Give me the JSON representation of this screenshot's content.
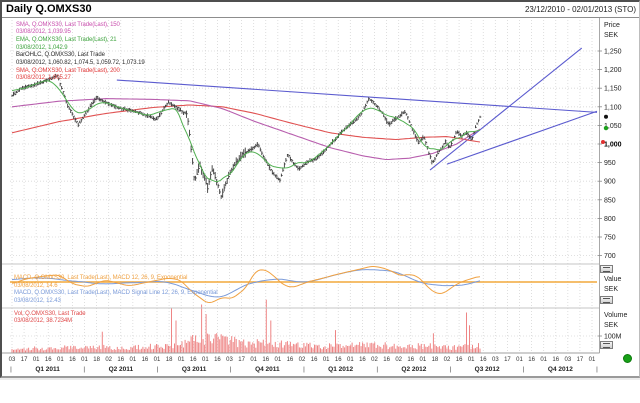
{
  "window": {
    "title": "Daily Q.OMXS30",
    "range": "23/12/2010 - 02/01/2013 (STO)"
  },
  "axes": {
    "price": {
      "title": "Price",
      "currency": "SEK",
      "tick_values": [
        1250,
        1200,
        1150,
        1100,
        1050,
        1000,
        950,
        900,
        850,
        800,
        750,
        700
      ],
      "tick_labels": [
        "1,250",
        "1,200",
        "1,150",
        "1,100",
        "1,050",
        "1,000",
        "950",
        "900",
        "850",
        "800",
        "750",
        "700"
      ],
      "bold_tick": 1000
    },
    "macd": {
      "title": "Value",
      "currency": "SEK"
    },
    "volume": {
      "title": "Volume",
      "currency": "SEK",
      "tick": "100M"
    }
  },
  "xaxis": {
    "days": [
      "03",
      "17",
      "01",
      "16",
      "01",
      "16",
      "01",
      "18",
      "02",
      "16",
      "01",
      "16",
      "01",
      "18",
      "01",
      "16",
      "01",
      "16",
      "03",
      "17",
      "01",
      "16",
      "01",
      "16",
      "02",
      "16",
      "01",
      "16",
      "01",
      "16",
      "02",
      "16",
      "02",
      "16",
      "01",
      "18",
      "02",
      "16",
      "01",
      "16",
      "03",
      "17",
      "01",
      "16",
      "01",
      "16",
      "03",
      "17",
      "01"
    ],
    "quarters": [
      "Q1 2011",
      "Q2 2011",
      "Q3 2011",
      "Q4 2011",
      "Q1 2012",
      "Q2 2012",
      "Q3 2012",
      "Q4 2012"
    ],
    "separator": "|"
  },
  "legends": {
    "main": [
      {
        "color": "#c94fae",
        "lines": [
          "SMA, Q.OMXS30, Last Trade(Last), 150",
          "03/08/2012, 1,039.95"
        ]
      },
      {
        "color": "#3da33d",
        "lines": [
          "EMA, Q.OMXS30, Last Trade(Last), 21",
          "03/08/2012, 1,042.9"
        ]
      },
      {
        "color": "#2b2b2b",
        "lines": [
          "BarOHLC, Q.OMXS30, Last Trade",
          "03/08/2012, 1,060.82, 1,074.5, 1,059.72, 1,073.19"
        ]
      },
      {
        "color": "#e23b3b",
        "lines": [
          "SMA, Q.OMXS30, Last Trade(Last), 200",
          "03/08/2012, 1,005.27"
        ]
      }
    ],
    "macd": [
      {
        "color": "#f0a243",
        "lines": [
          "MACD, Q.OMXS30, Last Trade(Last), MACD 12, 26, 9, Exponential",
          "03/08/2012, 14.6"
        ]
      },
      {
        "color": "#7b9bd9",
        "lines": [
          "MACD, Q.OMXS30, Last Trade(Last), MACD Signal Line 12, 26, 9, Exponential",
          "03/08/2012, 12.43"
        ]
      }
    ],
    "volume": [
      {
        "color": "#e04a4a",
        "lines": [
          "Vol, Q.OMXS30, Last Trade",
          "03/08/2012, 38.7234M"
        ]
      }
    ]
  },
  "colors": {
    "grid": "#d6d6d6",
    "ohlc_bar": "#3a3a3a",
    "ema": "#52b052",
    "sma150": "#b85fae",
    "sma200": "#e05252",
    "trendline": "#5b5bcf",
    "macd_line": "#f0a243",
    "macd_zero": "#f2a93b",
    "macd_signal": "#7b9bd9",
    "volume_bar": "#ee8585",
    "axis_text": "#222222",
    "status_green": "#18a018",
    "marker_last": "#111111",
    "marker_ema": "#1ea01e",
    "marker_sma200": "#e03030"
  },
  "chart_data": {
    "type": "ohlc-bar with SMA/EMA overlays, MACD and Volume subpanels",
    "instrument": "Q.OMXS30",
    "interval": "Daily",
    "x_range": [
      "23/12/2010",
      "02/01/2013"
    ],
    "data_end_fraction": 0.795,
    "last_bar": {
      "date": "03/08/2012",
      "open": 1060.82,
      "high": 1074.5,
      "low": 1059.72,
      "close": 1073.19
    },
    "price_ylim": [
      700,
      1250
    ],
    "markers": {
      "last": 1073.19,
      "ema21": 1042.9,
      "sma200": 1005.27
    },
    "close_anchors": [
      [
        0,
        1130
      ],
      [
        0.02,
        1150
      ],
      [
        0.05,
        1160
      ],
      [
        0.097,
        1183
      ],
      [
        0.12,
        1100
      ],
      [
        0.141,
        1052
      ],
      [
        0.18,
        1125
      ],
      [
        0.22,
        1100
      ],
      [
        0.27,
        1085
      ],
      [
        0.309,
        1067
      ],
      [
        0.334,
        1113
      ],
      [
        0.36,
        1090
      ],
      [
        0.375,
        1078
      ],
      [
        0.385,
        960
      ],
      [
        0.39,
        897
      ],
      [
        0.401,
        945
      ],
      [
        0.41,
        915
      ],
      [
        0.418,
        882
      ],
      [
        0.428,
        933
      ],
      [
        0.44,
        890
      ],
      [
        0.447,
        857
      ],
      [
        0.46,
        905
      ],
      [
        0.472,
        938
      ],
      [
        0.49,
        970
      ],
      [
        0.51,
        985
      ],
      [
        0.525,
        1000
      ],
      [
        0.54,
        960
      ],
      [
        0.555,
        925
      ],
      [
        0.572,
        902
      ],
      [
        0.589,
        973
      ],
      [
        0.6,
        950
      ],
      [
        0.613,
        932
      ],
      [
        0.632,
        953
      ],
      [
        0.65,
        960
      ],
      [
        0.67,
        985
      ],
      [
        0.688,
        1010
      ],
      [
        0.71,
        1040
      ],
      [
        0.737,
        1068
      ],
      [
        0.75,
        1090
      ],
      [
        0.762,
        1122
      ],
      [
        0.775,
        1108
      ],
      [
        0.79,
        1085
      ],
      [
        0.805,
        1052
      ],
      [
        0.82,
        1068
      ],
      [
        0.834,
        1082
      ],
      [
        0.84,
        1088
      ],
      [
        0.855,
        1040
      ],
      [
        0.869,
        1002
      ],
      [
        0.88,
        1020
      ],
      [
        0.898,
        947
      ],
      [
        0.91,
        975
      ],
      [
        0.927,
        1008
      ],
      [
        0.934,
        988
      ],
      [
        0.951,
        1035
      ],
      [
        0.96,
        1020
      ],
      [
        0.97,
        1030
      ],
      [
        0.983,
        1012
      ],
      [
        0.99,
        1045
      ],
      [
        1,
        1073.19
      ]
    ],
    "sma150_anchors": [
      [
        0,
        1100
      ],
      [
        0.1,
        1115
      ],
      [
        0.2,
        1122
      ],
      [
        0.3,
        1120
      ],
      [
        0.38,
        1116
      ],
      [
        0.45,
        1095
      ],
      [
        0.52,
        1060
      ],
      [
        0.6,
        1025
      ],
      [
        0.68,
        990
      ],
      [
        0.75,
        968
      ],
      [
        0.8,
        958
      ],
      [
        0.85,
        962
      ],
      [
        0.9,
        975
      ],
      [
        0.95,
        1000
      ],
      [
        0.975,
        1020
      ],
      [
        1,
        1039.95
      ]
    ],
    "sma200_anchors": [
      [
        0,
        1030
      ],
      [
        0.1,
        1060
      ],
      [
        0.2,
        1082
      ],
      [
        0.3,
        1098
      ],
      [
        0.38,
        1105
      ],
      [
        0.45,
        1100
      ],
      [
        0.52,
        1082
      ],
      [
        0.6,
        1055
      ],
      [
        0.68,
        1030
      ],
      [
        0.75,
        1018
      ],
      [
        0.82,
        1012
      ],
      [
        0.88,
        1018
      ],
      [
        0.93,
        1020
      ],
      [
        1,
        1005.27
      ]
    ],
    "macd_anchors": [
      [
        0,
        -5
      ],
      [
        0.03,
        8
      ],
      [
        0.07,
        15
      ],
      [
        0.1,
        18
      ],
      [
        0.13,
        -5
      ],
      [
        0.16,
        -12
      ],
      [
        0.2,
        5
      ],
      [
        0.25,
        -10
      ],
      [
        0.3,
        2
      ],
      [
        0.335,
        10
      ],
      [
        0.36,
        5
      ],
      [
        0.385,
        -25
      ],
      [
        0.42,
        -55
      ],
      [
        0.45,
        -38
      ],
      [
        0.47,
        -42
      ],
      [
        0.5,
        -15
      ],
      [
        0.52,
        28
      ],
      [
        0.54,
        32
      ],
      [
        0.56,
        15
      ],
      [
        0.58,
        -8
      ],
      [
        0.6,
        -14
      ],
      [
        0.62,
        -5
      ],
      [
        0.64,
        3
      ],
      [
        0.66,
        8
      ],
      [
        0.69,
        18
      ],
      [
        0.72,
        26
      ],
      [
        0.75,
        34
      ],
      [
        0.77,
        40
      ],
      [
        0.79,
        36
      ],
      [
        0.81,
        28
      ],
      [
        0.83,
        15
      ],
      [
        0.85,
        20
      ],
      [
        0.87,
        12
      ],
      [
        0.89,
        -15
      ],
      [
        0.905,
        -28
      ],
      [
        0.92,
        -30
      ],
      [
        0.935,
        -18
      ],
      [
        0.95,
        -5
      ],
      [
        0.965,
        2
      ],
      [
        0.98,
        8
      ],
      [
        1,
        14.6
      ]
    ],
    "volume_anchors_M": [
      [
        0,
        18
      ],
      [
        0.05,
        25
      ],
      [
        0.1,
        28
      ],
      [
        0.15,
        30
      ],
      [
        0.2,
        32
      ],
      [
        0.25,
        30
      ],
      [
        0.3,
        35
      ],
      [
        0.36,
        40
      ],
      [
        0.39,
        75
      ],
      [
        0.42,
        85
      ],
      [
        0.45,
        70
      ],
      [
        0.5,
        55
      ],
      [
        0.55,
        50
      ],
      [
        0.6,
        45
      ],
      [
        0.65,
        40
      ],
      [
        0.7,
        38
      ],
      [
        0.75,
        42
      ],
      [
        0.8,
        40
      ],
      [
        0.85,
        35
      ],
      [
        0.88,
        40
      ],
      [
        0.9,
        35
      ],
      [
        0.93,
        30
      ],
      [
        0.96,
        32
      ],
      [
        1,
        38.7
      ]
    ],
    "volume_spikes_M": [
      [
        0.192,
        130
      ],
      [
        0.342,
        280
      ],
      [
        0.35,
        200
      ],
      [
        0.405,
        300
      ],
      [
        0.415,
        240
      ],
      [
        0.545,
        330
      ],
      [
        0.552,
        200
      ],
      [
        0.69,
        140
      ],
      [
        0.9,
        120
      ],
      [
        0.97,
        250
      ],
      [
        0.978,
        170
      ]
    ],
    "trendlines": [
      {
        "x1": 0.182,
        "p1": 1172,
        "x2": 1.0,
        "p2": 1085
      },
      {
        "x1": 0.7155,
        "p1": 930,
        "x2": 0.974,
        "p2": 1258
      },
      {
        "x1": 0.7445,
        "p1": 946,
        "x2": 1.0,
        "p2": 1088
      }
    ]
  }
}
